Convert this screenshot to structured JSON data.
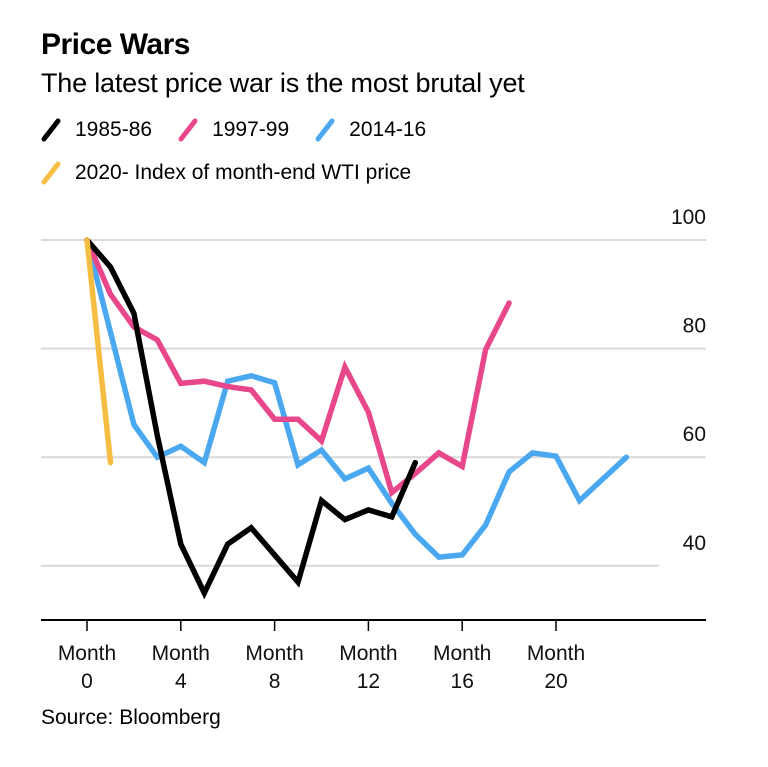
{
  "header": {
    "title": "Price Wars",
    "subtitle": "The latest price war is the most brutal yet"
  },
  "legend": [
    {
      "label": "1985-86",
      "color": "#000000"
    },
    {
      "label": "1997-99",
      "color": "#e8478b"
    },
    {
      "label": "2014-16",
      "color": "#4aa8f0"
    },
    {
      "label": "2020- Index of month-end WTI price",
      "color": "#f5bd42"
    }
  ],
  "footer": {
    "source": "Source: Bloomberg"
  },
  "chart_data": {
    "type": "line",
    "title": "Price Wars",
    "subtitle": "The latest price war is the most brutal yet",
    "xlabel": "",
    "ylabel": "Index of month-end WTI price",
    "xlim": [
      0,
      23
    ],
    "ylim": [
      30,
      100
    ],
    "grid": true,
    "y_axis_position": "right",
    "legend_position": "top-left",
    "x_ticks": [
      {
        "value": 0,
        "label_line1": "Month",
        "label_line2": "0"
      },
      {
        "value": 4,
        "label_line1": "Month",
        "label_line2": "4"
      },
      {
        "value": 8,
        "label_line1": "Month",
        "label_line2": "8"
      },
      {
        "value": 12,
        "label_line1": "Month",
        "label_line2": "12"
      },
      {
        "value": 16,
        "label_line1": "Month",
        "label_line2": "16"
      },
      {
        "value": 20,
        "label_line1": "Month",
        "label_line2": "20"
      }
    ],
    "y_ticks": [
      {
        "value": 100,
        "label": "100"
      },
      {
        "value": 80,
        "label": "80"
      },
      {
        "value": 60,
        "label": "60"
      },
      {
        "value": 40,
        "label": "40"
      }
    ],
    "series": [
      {
        "name": "1985-86",
        "color": "#000000",
        "x": [
          0,
          1,
          2,
          3,
          4,
          5,
          6,
          7,
          8,
          9,
          10,
          11,
          12,
          13,
          14
        ],
        "values": [
          100,
          95,
          86.5,
          64,
          44,
          35,
          44,
          47,
          42,
          37,
          52,
          48.5,
          50.3,
          49,
          59
        ]
      },
      {
        "name": "1997-99",
        "color": "#e8478b",
        "x": [
          0,
          1,
          2,
          3,
          4,
          5,
          6,
          7,
          8,
          9,
          10,
          11,
          12,
          13,
          14,
          15,
          16,
          17,
          18
        ],
        "values": [
          100,
          90,
          84,
          81.6,
          73.6,
          74,
          73,
          72.4,
          67,
          67,
          63,
          76.6,
          68.3,
          53.5,
          57,
          60.8,
          58.3,
          79.8,
          88.4
        ]
      },
      {
        "name": "2014-16",
        "color": "#4aa8f0",
        "x": [
          0,
          1,
          2,
          3,
          4,
          5,
          6,
          7,
          8,
          9,
          10,
          11,
          12,
          13,
          14,
          15,
          16,
          17,
          18,
          19,
          20,
          21,
          22,
          23
        ],
        "values": [
          100,
          83,
          66,
          60,
          62,
          59,
          74,
          75,
          73.7,
          58.6,
          61.3,
          56,
          58,
          51.5,
          45.8,
          41.6,
          42,
          47.5,
          57.3,
          60.8,
          60.2,
          52,
          56,
          60
        ]
      },
      {
        "name": "2020- Index of month-end WTI price",
        "color": "#f5bd42",
        "x": [
          0,
          1
        ],
        "values": [
          100,
          59
        ]
      }
    ]
  }
}
